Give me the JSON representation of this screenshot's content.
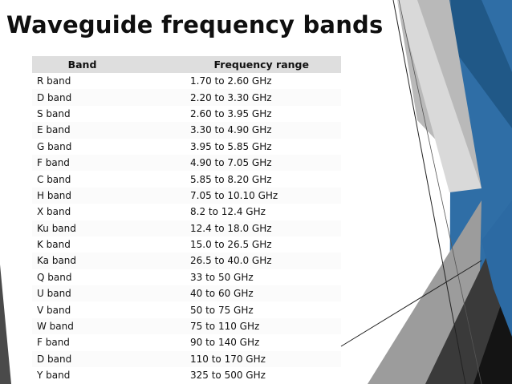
{
  "slide": {
    "title": "Waveguide frequency bands"
  },
  "table": {
    "headers": {
      "band": "Band",
      "range": "Frequency range"
    },
    "rows": [
      {
        "band": "R band",
        "range": "1.70 to 2.60 GHz"
      },
      {
        "band": "D band",
        "range": "2.20 to 3.30 GHz"
      },
      {
        "band": "S band",
        "range": "2.60 to 3.95 GHz"
      },
      {
        "band": "E band",
        "range": "3.30 to 4.90 GHz"
      },
      {
        "band": "G band",
        "range": "3.95 to 5.85 GHz"
      },
      {
        "band": "F band",
        "range": "4.90 to 7.05 GHz"
      },
      {
        "band": "C band",
        "range": "5.85 to 8.20 GHz"
      },
      {
        "band": "H band",
        "range": "7.05 to 10.10 GHz"
      },
      {
        "band": "X band",
        "range": "8.2 to 12.4 GHz"
      },
      {
        "band": "Ku band",
        "range": "12.4 to 18.0 GHz"
      },
      {
        "band": "K band",
        "range": "15.0 to 26.5 GHz"
      },
      {
        "band": "Ka band",
        "range": "26.5 to 40.0 GHz"
      },
      {
        "band": "Q band",
        "range": "33 to 50 GHz"
      },
      {
        "band": "U band",
        "range": "40 to 60 GHz"
      },
      {
        "band": "V band",
        "range": "50 to 75 GHz"
      },
      {
        "band": "W band",
        "range": "75 to 110 GHz"
      },
      {
        "band": "F band",
        "range": "90 to 140 GHz"
      },
      {
        "band": "D band",
        "range": "110 to 170 GHz"
      },
      {
        "band": "Y band",
        "range": "325 to 500 GHz"
      }
    ]
  },
  "theme": {
    "accent_blue": "#2e6fa8",
    "dark_gray": "#3d3d3d",
    "mid_gray": "#8a8a8a",
    "header_fill": "#dedede"
  }
}
